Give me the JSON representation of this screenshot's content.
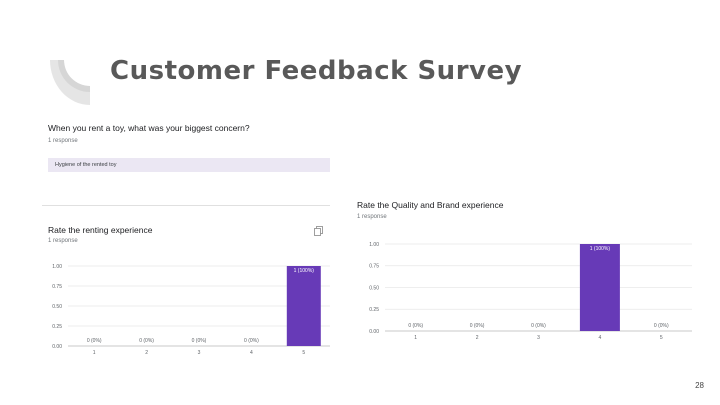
{
  "slide": {
    "title": "Customer Feedback Survey",
    "page_number": "28"
  },
  "question1": {
    "title": "When you rent a toy, what was your biggest concern?",
    "responses": "1 response",
    "answer": "Hygiene of the rented toy"
  },
  "colors": {
    "bar": "#673ab7",
    "grid": "#e8e8e8",
    "answer_bg": "#ebe7f3",
    "deco": "#e5e5e5"
  },
  "charts": [
    {
      "key": "renting",
      "title": "Rate the renting experience",
      "responses": "1 response",
      "chart_data": {
        "type": "bar",
        "categories": [
          "1",
          "2",
          "3",
          "4",
          "5"
        ],
        "values": [
          0,
          0,
          0,
          0,
          1
        ],
        "data_labels": [
          "0 (0%)",
          "0 (0%)",
          "0 (0%)",
          "0 (0%)",
          "1 (100%)"
        ],
        "y_ticks": [
          "0.00",
          "0.25",
          "0.50",
          "0.75",
          "1.00"
        ],
        "ylim": [
          0,
          1
        ],
        "grid": true
      }
    },
    {
      "key": "quality",
      "title": "Rate the Quality and Brand experience",
      "responses": "1 response",
      "chart_data": {
        "type": "bar",
        "categories": [
          "1",
          "2",
          "3",
          "4",
          "5"
        ],
        "values": [
          0,
          0,
          0,
          1,
          0
        ],
        "data_labels": [
          "0 (0%)",
          "0 (0%)",
          "0 (0%)",
          "1 (100%)",
          "0 (0%)"
        ],
        "y_ticks": [
          "0.00",
          "0.25",
          "0.50",
          "0.75",
          "1.00"
        ],
        "ylim": [
          0,
          1
        ],
        "grid": true
      }
    }
  ]
}
